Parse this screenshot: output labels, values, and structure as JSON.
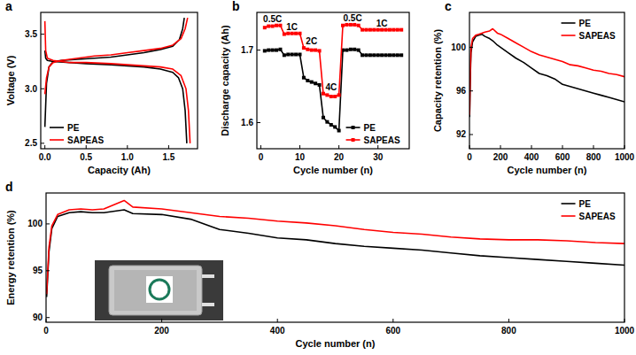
{
  "chart_data": [
    {
      "type": "line",
      "title": "a",
      "x_label": "Capacity (Ah)",
      "y_label": "Voltage (V)",
      "xlim": [
        -0.05,
        1.85
      ],
      "ylim": [
        2.45,
        3.7
      ],
      "xticks": [
        {
          "value": 0,
          "label": "0.0"
        },
        0.5,
        {
          "value": 1,
          "label": "1.0"
        },
        1.5
      ],
      "yticks": [
        2.5,
        {
          "value": 3,
          "label": "3.0"
        },
        3.5
      ],
      "grid": false,
      "legend": "lower left",
      "series": [
        {
          "name": "PE",
          "color": "#000000",
          "x": [
            0,
            0.02,
            0.05,
            0.1,
            0.2,
            0.4,
            0.6,
            0.8,
            1.0,
            1.2,
            1.4,
            1.55,
            1.63,
            1.67,
            1.69,
            null,
            0,
            0.01,
            0.03,
            0.1,
            0.3,
            0.5,
            0.8,
            1.0,
            1.2,
            1.4,
            1.55,
            1.62,
            1.67,
            1.7,
            1.72
          ],
          "values": [
            2.65,
            3.05,
            3.2,
            3.25,
            3.26,
            3.27,
            3.28,
            3.29,
            3.31,
            3.33,
            3.36,
            3.39,
            3.45,
            3.55,
            3.65,
            null,
            3.35,
            3.28,
            3.26,
            3.25,
            3.24,
            3.23,
            3.22,
            3.21,
            3.2,
            3.18,
            3.15,
            3.1,
            3.0,
            2.8,
            2.5
          ]
        },
        {
          "name": "SAPEAS",
          "color": "#ff0000",
          "x": [
            0,
            0.02,
            0.05,
            0.1,
            0.2,
            0.4,
            0.6,
            0.8,
            1.0,
            1.2,
            1.4,
            1.55,
            1.65,
            1.7,
            1.73,
            null,
            0,
            0.01,
            0.03,
            0.1,
            0.3,
            0.5,
            0.8,
            1.0,
            1.2,
            1.4,
            1.55,
            1.65,
            1.71,
            1.74,
            1.76
          ],
          "values": [
            2.95,
            3.1,
            3.2,
            3.24,
            3.26,
            3.28,
            3.3,
            3.31,
            3.33,
            3.35,
            3.37,
            3.4,
            3.46,
            3.55,
            3.65,
            null,
            3.62,
            3.35,
            3.28,
            3.26,
            3.24,
            3.24,
            3.23,
            3.22,
            3.21,
            3.2,
            3.18,
            3.12,
            3.0,
            2.8,
            2.5
          ]
        }
      ]
    },
    {
      "type": "line",
      "title": "b",
      "x_label": "Cycle number (n)",
      "y_label": "Discharge capacity (Ah)",
      "xlim": [
        -1,
        38
      ],
      "ylim": [
        1.564,
        1.752
      ],
      "xticks": [
        0,
        10,
        20,
        30
      ],
      "yticks": [
        1.6,
        1.7
      ],
      "grid": false,
      "legend": "lower right",
      "marker": "square",
      "annotations": [
        {
          "text": "0.5C",
          "x": 3,
          "y": 1.739
        },
        {
          "text": "1C",
          "x": 8,
          "y": 1.728
        },
        {
          "text": "2C",
          "x": 13,
          "y": 1.708
        },
        {
          "text": "4C",
          "x": 18,
          "y": 1.645
        },
        {
          "text": "0.5C",
          "x": 23.5,
          "y": 1.74
        },
        {
          "text": "1C",
          "x": 31,
          "y": 1.733
        }
      ],
      "series": [
        {
          "name": "PE",
          "color": "#000000",
          "x": [
            1,
            2,
            3,
            4,
            5,
            6,
            7,
            8,
            9,
            10,
            11,
            12,
            13,
            14,
            15,
            16,
            17,
            18,
            19,
            20,
            21,
            22,
            23,
            24,
            25,
            26,
            27,
            28,
            29,
            30,
            31,
            32,
            33,
            34,
            35,
            36
          ],
          "values": [
            1.699,
            1.7,
            1.7,
            1.7,
            1.701,
            1.693,
            1.694,
            1.694,
            1.694,
            1.694,
            1.662,
            1.658,
            1.656,
            1.654,
            1.652,
            1.607,
            1.601,
            1.597,
            1.594,
            1.589,
            1.7,
            1.7,
            1.701,
            1.701,
            1.7,
            1.693,
            1.693,
            1.693,
            1.693,
            1.693,
            1.693,
            1.693,
            1.693,
            1.693,
            1.693,
            1.693
          ]
        },
        {
          "name": "SAPEAS",
          "color": "#ff0000",
          "x": [
            1,
            2,
            3,
            4,
            5,
            6,
            7,
            8,
            9,
            10,
            11,
            12,
            13,
            14,
            15,
            16,
            17,
            18,
            19,
            20,
            21,
            22,
            23,
            24,
            25,
            26,
            27,
            28,
            29,
            30,
            31,
            32,
            33,
            34,
            35,
            36
          ],
          "values": [
            1.731,
            1.733,
            1.733,
            1.734,
            1.734,
            1.722,
            1.723,
            1.723,
            1.723,
            1.723,
            1.703,
            1.701,
            1.7,
            1.7,
            1.699,
            1.64,
            1.638,
            1.636,
            1.636,
            1.638,
            1.734,
            1.735,
            1.735,
            1.735,
            1.734,
            1.728,
            1.728,
            1.728,
            1.728,
            1.728,
            1.728,
            1.728,
            1.728,
            1.728,
            1.728,
            1.728
          ]
        }
      ]
    },
    {
      "type": "line",
      "title": "c",
      "x_label": "Cycle number (n)",
      "y_label": "Capacity retention (%)",
      "xlim": [
        0,
        1000
      ],
      "ylim": [
        90.7,
        103.2
      ],
      "xticks": [
        0,
        200,
        400,
        600,
        800,
        1000
      ],
      "yticks": [
        92,
        96,
        100
      ],
      "grid": false,
      "legend": "upper right",
      "series": [
        {
          "name": "PE",
          "color": "#000000",
          "x": [
            1,
            5,
            10,
            20,
            40,
            60,
            80,
            100,
            130,
            150,
            180,
            200,
            250,
            300,
            350,
            400,
            450,
            500,
            550,
            600,
            650,
            700,
            750,
            800,
            850,
            900,
            950,
            1000
          ],
          "values": [
            93.6,
            97,
            99.5,
            100.5,
            101,
            101.1,
            101.2,
            101,
            100.8,
            100.6,
            100.2,
            100.0,
            99.5,
            99,
            98.6,
            98.1,
            97.6,
            97.4,
            97.1,
            96.6,
            96.4,
            96.2,
            96.0,
            95.8,
            95.6,
            95.4,
            95.2,
            95.0
          ]
        },
        {
          "name": "SAPEAS",
          "color": "#ff0000",
          "x": [
            1,
            5,
            10,
            20,
            40,
            60,
            80,
            100,
            130,
            150,
            180,
            200,
            250,
            300,
            350,
            400,
            450,
            500,
            550,
            600,
            650,
            700,
            750,
            800,
            850,
            900,
            950,
            1000
          ],
          "values": [
            93.8,
            97.5,
            100,
            100.8,
            101.1,
            101.2,
            101.3,
            101.4,
            101.5,
            101.7,
            101.3,
            101.2,
            100.8,
            100.4,
            100.0,
            99.6,
            99.3,
            99.1,
            98.9,
            98.7,
            98.4,
            98.3,
            98.1,
            97.9,
            97.8,
            97.6,
            97.5,
            97.3
          ]
        }
      ]
    },
    {
      "type": "line",
      "title": "d",
      "x_label": "Cycle number (n)",
      "y_label": "Energy retention (%)",
      "xlim": [
        0,
        1000
      ],
      "ylim": [
        89.5,
        103.3
      ],
      "xticks": [
        0,
        200,
        400,
        600,
        800,
        1000
      ],
      "yticks": [
        90,
        95,
        100
      ],
      "grid": false,
      "legend": "upper right",
      "series": [
        {
          "name": "PE",
          "color": "#000000",
          "x": [
            1,
            5,
            10,
            20,
            40,
            60,
            80,
            100,
            135,
            150,
            200,
            250,
            300,
            350,
            400,
            450,
            500,
            550,
            600,
            650,
            700,
            750,
            800,
            850,
            900,
            950,
            1000
          ],
          "values": [
            92.2,
            97,
            99.5,
            100.8,
            101.2,
            101.3,
            101.2,
            101.2,
            101.5,
            101.1,
            101.0,
            100.5,
            99.4,
            99.0,
            98.5,
            98.3,
            97.9,
            97.6,
            97.4,
            97.2,
            96.9,
            96.6,
            96.4,
            96.2,
            96.0,
            95.8,
            95.6
          ]
        },
        {
          "name": "SAPEAS",
          "color": "#ff0000",
          "x": [
            1,
            5,
            10,
            20,
            40,
            60,
            80,
            100,
            135,
            150,
            200,
            250,
            300,
            350,
            400,
            450,
            500,
            550,
            600,
            650,
            700,
            750,
            800,
            850,
            900,
            950,
            1000
          ],
          "values": [
            92.5,
            97.5,
            99.8,
            101.0,
            101.5,
            101.6,
            101.5,
            101.6,
            102.5,
            101.8,
            101.6,
            101.2,
            100.8,
            100.6,
            100.3,
            100.1,
            99.8,
            99.4,
            99.1,
            98.9,
            98.6,
            98.4,
            98.3,
            98.3,
            98.2,
            98.0,
            97.9
          ]
        }
      ]
    }
  ]
}
